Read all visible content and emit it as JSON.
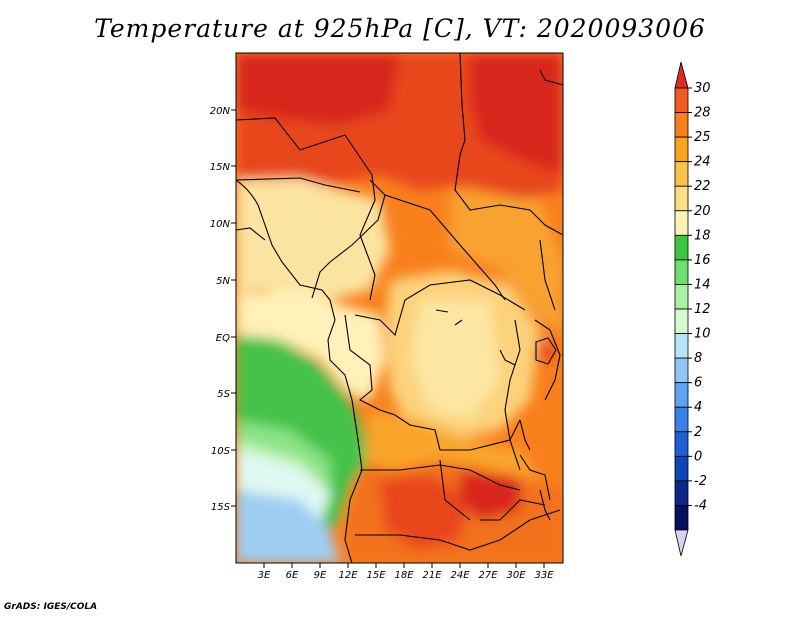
{
  "title": "Temperature at 925hPa [C], VT: 2020093006",
  "credit": "GrADS: IGES/COLA",
  "map": {
    "lat_labels": [
      "20N",
      "15N",
      "10N",
      "5N",
      "EQ",
      "5S",
      "10S",
      "15S"
    ],
    "lon_labels": [
      "3E",
      "6E",
      "9E",
      "12E",
      "15E",
      "18E",
      "21E",
      "24E",
      "27E",
      "30E",
      "33E"
    ]
  },
  "colorbar": {
    "labels": [
      "30",
      "28",
      "25",
      "24",
      "22",
      "20",
      "18",
      "16",
      "14",
      "12",
      "10",
      "8",
      "6",
      "4",
      "2",
      "0",
      "-2",
      "-4"
    ],
    "top_arrow_color": "#e02b1e",
    "bottom_arrow_color": "#d7d3f7",
    "colors": [
      "#f15a21",
      "#f8801c",
      "#f7a41e",
      "#fac24a",
      "#fddd86",
      "#fdf3b4",
      "#3fc43f",
      "#6fdd6f",
      "#a9f1a3",
      "#d6fad0",
      "#b6e4fb",
      "#8ec7f7",
      "#5ea3ef",
      "#3a82e6",
      "#1e5fd3",
      "#0d46b6",
      "#0a2a8a",
      "#060f60"
    ]
  }
}
